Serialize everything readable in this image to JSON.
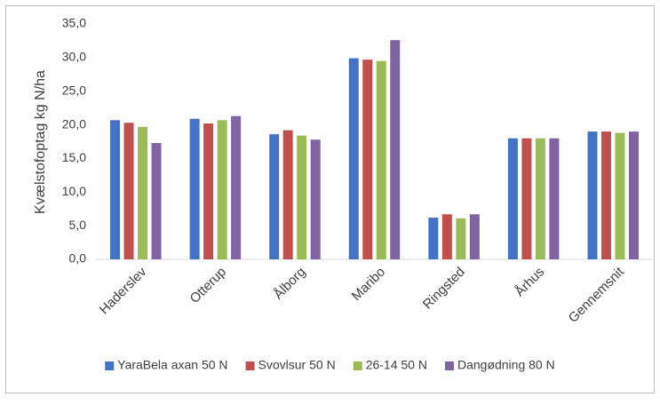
{
  "chart_data": {
    "type": "bar",
    "y_label": "Kvælstofoptag kg N/ha",
    "categories": [
      "Haderslev",
      "Otterup",
      "Ålborg",
      "Maribo",
      "Ringsted",
      "Århus",
      "Gennemsnit"
    ],
    "series": [
      {
        "name": "YaraBela axan 50 N",
        "color": "#4472c4",
        "values": [
          20.7,
          20.9,
          18.6,
          29.9,
          6.2,
          18.0,
          19.0
        ]
      },
      {
        "name": "Svovlsur 50 N",
        "color": "#c0504d",
        "values": [
          20.3,
          20.2,
          19.2,
          29.7,
          6.7,
          18.0,
          19.0
        ]
      },
      {
        "name": "26-14 50 N",
        "color": "#9bbb59",
        "values": [
          19.7,
          20.7,
          18.4,
          29.5,
          6.1,
          18.0,
          18.8
        ]
      },
      {
        "name": "Dangødning 80 N",
        "color": "#8064a2",
        "values": [
          17.3,
          21.3,
          17.8,
          32.6,
          6.7,
          18.0,
          19.0
        ]
      }
    ],
    "ylim": [
      0,
      35
    ],
    "yticks": [
      {
        "value": 0,
        "label": "0,0"
      },
      {
        "value": 5,
        "label": "5,0"
      },
      {
        "value": 10,
        "label": "10,0"
      },
      {
        "value": 15,
        "label": "15,0"
      },
      {
        "value": 20,
        "label": "20,0"
      },
      {
        "value": 25,
        "label": "25,0"
      },
      {
        "value": 30,
        "label": "30,0"
      },
      {
        "value": 35,
        "label": "35,0"
      }
    ],
    "grid": false,
    "legend": "bottom"
  }
}
